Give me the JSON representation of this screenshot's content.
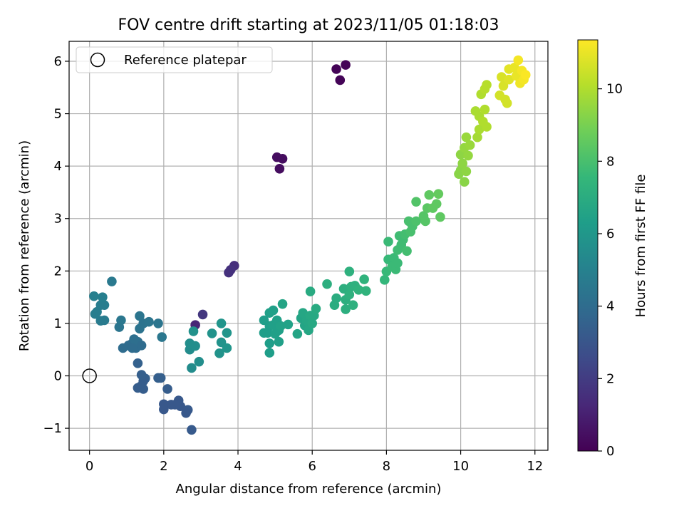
{
  "chart_data": {
    "type": "scatter",
    "title": "FOV centre drift starting at 2023/11/05 01:18:03",
    "xlabel": "Angular distance from reference (arcmin)",
    "ylabel": "Rotation from reference (arcmin)",
    "xlim": [
      -0.55,
      12.35
    ],
    "ylim": [
      -1.42,
      6.38
    ],
    "xticks": [
      0,
      2,
      4,
      6,
      8,
      10,
      12
    ],
    "yticks": [
      -1,
      0,
      1,
      2,
      3,
      4,
      5,
      6
    ],
    "xtick_labels": [
      "0",
      "2",
      "4",
      "6",
      "8",
      "10",
      "12"
    ],
    "ytick_labels": [
      "−1",
      "0",
      "1",
      "2",
      "3",
      "4",
      "5",
      "6"
    ],
    "grid": true,
    "legend": {
      "position": "top-left",
      "entries": [
        {
          "label": "Reference platepar",
          "marker": "open-circle"
        }
      ]
    },
    "reference_point": {
      "x": 0,
      "y": 0
    },
    "colorbar": {
      "label": "Hours from first FF file",
      "colormap": "viridis",
      "range": [
        0,
        11.35
      ],
      "ticks": [
        0,
        2,
        4,
        6,
        8,
        10
      ],
      "tick_labels": [
        "0",
        "2",
        "4",
        "6",
        "8",
        "10"
      ]
    },
    "viridis_stops": [
      "#440154",
      "#482878",
      "#3e4a89",
      "#31688e",
      "#26828e",
      "#1f9e89",
      "#35b779",
      "#6ece58",
      "#b5de2b",
      "#fde725"
    ],
    "points": [
      {
        "x": 6.65,
        "y": 5.85,
        "h": 0.1
      },
      {
        "x": 6.9,
        "y": 5.93,
        "h": 0.1
      },
      {
        "x": 6.75,
        "y": 5.64,
        "h": 0.1
      },
      {
        "x": 5.05,
        "y": 4.17,
        "h": 0.4
      },
      {
        "x": 5.2,
        "y": 4.14,
        "h": 0.4
      },
      {
        "x": 5.12,
        "y": 3.95,
        "h": 0.4
      },
      {
        "x": 3.9,
        "y": 2.1,
        "h": 1.5
      },
      {
        "x": 3.8,
        "y": 2.02,
        "h": 1.6
      },
      {
        "x": 3.75,
        "y": 1.97,
        "h": 1.6
      },
      {
        "x": 3.05,
        "y": 1.17,
        "h": 1.8
      },
      {
        "x": 2.85,
        "y": 0.97,
        "h": 1.2
      },
      {
        "x": 2.75,
        "y": -1.03,
        "h": 3.2
      },
      {
        "x": 2.65,
        "y": -0.65,
        "h": 3.2
      },
      {
        "x": 2.6,
        "y": -0.71,
        "h": 3.1
      },
      {
        "x": 2.45,
        "y": -0.58,
        "h": 3.1
      },
      {
        "x": 2.4,
        "y": -0.47,
        "h": 3.1
      },
      {
        "x": 2.3,
        "y": -0.55,
        "h": 3.1
      },
      {
        "x": 2.2,
        "y": -0.55,
        "h": 3.1
      },
      {
        "x": 2.1,
        "y": -0.25,
        "h": 3.3
      },
      {
        "x": 2.0,
        "y": -0.54,
        "h": 3.1
      },
      {
        "x": 2.0,
        "y": -0.64,
        "h": 3.1
      },
      {
        "x": 1.85,
        "y": -0.04,
        "h": 3.4
      },
      {
        "x": 1.92,
        "y": -0.04,
        "h": 3.4
      },
      {
        "x": 1.5,
        "y": -0.05,
        "h": 3.4
      },
      {
        "x": 1.45,
        "y": -0.1,
        "h": 3.3
      },
      {
        "x": 1.4,
        "y": 0.02,
        "h": 3.4
      },
      {
        "x": 1.38,
        "y": -0.2,
        "h": 3.3
      },
      {
        "x": 1.45,
        "y": -0.25,
        "h": 3.3
      },
      {
        "x": 1.3,
        "y": -0.23,
        "h": 3.3
      },
      {
        "x": 1.3,
        "y": 0.24,
        "h": 3.5
      },
      {
        "x": 0.9,
        "y": 0.53,
        "h": 4.0
      },
      {
        "x": 1.05,
        "y": 0.58,
        "h": 4.0
      },
      {
        "x": 1.15,
        "y": 0.62,
        "h": 4.0
      },
      {
        "x": 1.2,
        "y": 0.7,
        "h": 4.1
      },
      {
        "x": 1.25,
        "y": 0.53,
        "h": 4.0
      },
      {
        "x": 1.3,
        "y": 0.65,
        "h": 4.1
      },
      {
        "x": 1.4,
        "y": 0.58,
        "h": 4.0
      },
      {
        "x": 1.15,
        "y": 0.53,
        "h": 4.0
      },
      {
        "x": 1.35,
        "y": 0.9,
        "h": 4.3
      },
      {
        "x": 1.35,
        "y": 1.14,
        "h": 4.4
      },
      {
        "x": 1.45,
        "y": 1.0,
        "h": 4.3
      },
      {
        "x": 1.6,
        "y": 1.03,
        "h": 4.4
      },
      {
        "x": 1.85,
        "y": 1.0,
        "h": 4.4
      },
      {
        "x": 1.95,
        "y": 0.74,
        "h": 4.5
      },
      {
        "x": 0.8,
        "y": 0.93,
        "h": 4.4
      },
      {
        "x": 0.85,
        "y": 1.06,
        "h": 4.5
      },
      {
        "x": 0.6,
        "y": 1.8,
        "h": 4.6
      },
      {
        "x": 0.3,
        "y": 1.05,
        "h": 4.7
      },
      {
        "x": 0.4,
        "y": 1.06,
        "h": 4.7
      },
      {
        "x": 0.2,
        "y": 1.22,
        "h": 4.8
      },
      {
        "x": 0.15,
        "y": 1.18,
        "h": 4.8
      },
      {
        "x": 0.3,
        "y": 1.35,
        "h": 4.8
      },
      {
        "x": 0.4,
        "y": 1.35,
        "h": 4.8
      },
      {
        "x": 0.12,
        "y": 1.52,
        "h": 4.9
      },
      {
        "x": 0.35,
        "y": 1.5,
        "h": 4.9
      },
      {
        "x": 2.7,
        "y": 0.5,
        "h": 5.5
      },
      {
        "x": 2.75,
        "y": 0.15,
        "h": 5.5
      },
      {
        "x": 2.85,
        "y": 0.57,
        "h": 5.6
      },
      {
        "x": 2.7,
        "y": 0.62,
        "h": 5.6
      },
      {
        "x": 2.8,
        "y": 0.85,
        "h": 5.7
      },
      {
        "x": 2.95,
        "y": 0.27,
        "h": 5.6
      },
      {
        "x": 3.3,
        "y": 0.81,
        "h": 5.8
      },
      {
        "x": 3.5,
        "y": 0.43,
        "h": 5.8
      },
      {
        "x": 3.55,
        "y": 0.64,
        "h": 5.8
      },
      {
        "x": 3.55,
        "y": 1.0,
        "h": 5.9
      },
      {
        "x": 3.7,
        "y": 0.82,
        "h": 5.9
      },
      {
        "x": 3.7,
        "y": 0.53,
        "h": 5.9
      },
      {
        "x": 4.7,
        "y": 1.06,
        "h": 6.3
      },
      {
        "x": 4.8,
        "y": 0.82,
        "h": 6.3
      },
      {
        "x": 4.7,
        "y": 0.82,
        "h": 6.3
      },
      {
        "x": 4.85,
        "y": 0.95,
        "h": 6.3
      },
      {
        "x": 4.85,
        "y": 0.62,
        "h": 6.3
      },
      {
        "x": 4.85,
        "y": 0.44,
        "h": 6.3
      },
      {
        "x": 4.85,
        "y": 1.2,
        "h": 6.4
      },
      {
        "x": 4.95,
        "y": 1.25,
        "h": 6.4
      },
      {
        "x": 4.95,
        "y": 0.97,
        "h": 6.4
      },
      {
        "x": 5.0,
        "y": 0.8,
        "h": 6.4
      },
      {
        "x": 5.05,
        "y": 1.06,
        "h": 6.4
      },
      {
        "x": 5.1,
        "y": 0.87,
        "h": 6.4
      },
      {
        "x": 5.1,
        "y": 0.65,
        "h": 6.4
      },
      {
        "x": 5.15,
        "y": 0.95,
        "h": 6.5
      },
      {
        "x": 5.2,
        "y": 1.37,
        "h": 6.6
      },
      {
        "x": 5.35,
        "y": 0.98,
        "h": 6.5
      },
      {
        "x": 5.6,
        "y": 0.8,
        "h": 6.6
      },
      {
        "x": 5.7,
        "y": 1.1,
        "h": 6.6
      },
      {
        "x": 5.75,
        "y": 1.2,
        "h": 6.7
      },
      {
        "x": 5.8,
        "y": 0.96,
        "h": 6.6
      },
      {
        "x": 5.85,
        "y": 1.05,
        "h": 6.7
      },
      {
        "x": 5.9,
        "y": 0.87,
        "h": 6.7
      },
      {
        "x": 5.95,
        "y": 1.15,
        "h": 6.8
      },
      {
        "x": 6.0,
        "y": 1.0,
        "h": 6.8
      },
      {
        "x": 6.05,
        "y": 1.15,
        "h": 6.8
      },
      {
        "x": 6.1,
        "y": 1.28,
        "h": 6.9
      },
      {
        "x": 5.95,
        "y": 1.61,
        "h": 6.9
      },
      {
        "x": 6.4,
        "y": 1.75,
        "h": 7.1
      },
      {
        "x": 6.6,
        "y": 1.35,
        "h": 7.0
      },
      {
        "x": 6.65,
        "y": 1.48,
        "h": 7.0
      },
      {
        "x": 6.85,
        "y": 1.66,
        "h": 7.1
      },
      {
        "x": 6.9,
        "y": 1.27,
        "h": 7.1
      },
      {
        "x": 6.9,
        "y": 1.45,
        "h": 7.1
      },
      {
        "x": 7.0,
        "y": 1.55,
        "h": 7.2
      },
      {
        "x": 7.0,
        "y": 1.99,
        "h": 7.2
      },
      {
        "x": 7.05,
        "y": 1.7,
        "h": 7.2
      },
      {
        "x": 7.1,
        "y": 1.35,
        "h": 7.2
      },
      {
        "x": 7.15,
        "y": 1.72,
        "h": 7.2
      },
      {
        "x": 7.25,
        "y": 1.64,
        "h": 7.3
      },
      {
        "x": 7.4,
        "y": 1.84,
        "h": 7.3
      },
      {
        "x": 7.45,
        "y": 1.62,
        "h": 7.3
      },
      {
        "x": 7.95,
        "y": 1.83,
        "h": 7.5
      },
      {
        "x": 8.0,
        "y": 1.99,
        "h": 7.6
      },
      {
        "x": 8.05,
        "y": 2.22,
        "h": 7.6
      },
      {
        "x": 8.05,
        "y": 2.56,
        "h": 7.7
      },
      {
        "x": 8.15,
        "y": 2.08,
        "h": 7.7
      },
      {
        "x": 8.2,
        "y": 2.25,
        "h": 7.7
      },
      {
        "x": 8.25,
        "y": 2.03,
        "h": 7.7
      },
      {
        "x": 8.3,
        "y": 2.15,
        "h": 7.7
      },
      {
        "x": 8.3,
        "y": 2.4,
        "h": 7.8
      },
      {
        "x": 8.35,
        "y": 2.67,
        "h": 7.8
      },
      {
        "x": 8.4,
        "y": 2.5,
        "h": 7.8
      },
      {
        "x": 8.45,
        "y": 2.6,
        "h": 7.8
      },
      {
        "x": 8.5,
        "y": 2.7,
        "h": 7.9
      },
      {
        "x": 8.55,
        "y": 2.38,
        "h": 7.9
      },
      {
        "x": 8.6,
        "y": 2.95,
        "h": 8.0
      },
      {
        "x": 8.65,
        "y": 2.75,
        "h": 8.0
      },
      {
        "x": 8.7,
        "y": 2.85,
        "h": 8.0
      },
      {
        "x": 8.8,
        "y": 2.95,
        "h": 8.1
      },
      {
        "x": 8.8,
        "y": 3.32,
        "h": 8.2
      },
      {
        "x": 9.0,
        "y": 3.05,
        "h": 8.3
      },
      {
        "x": 9.05,
        "y": 2.95,
        "h": 8.3
      },
      {
        "x": 9.1,
        "y": 3.2,
        "h": 8.4
      },
      {
        "x": 9.15,
        "y": 3.45,
        "h": 8.5
      },
      {
        "x": 9.25,
        "y": 3.2,
        "h": 8.5
      },
      {
        "x": 9.35,
        "y": 3.28,
        "h": 8.5
      },
      {
        "x": 9.4,
        "y": 3.47,
        "h": 8.6
      },
      {
        "x": 9.45,
        "y": 3.03,
        "h": 8.5
      },
      {
        "x": 9.95,
        "y": 3.85,
        "h": 9.3
      },
      {
        "x": 10.0,
        "y": 4.22,
        "h": 9.4
      },
      {
        "x": 10.0,
        "y": 3.92,
        "h": 9.3
      },
      {
        "x": 10.05,
        "y": 4.05,
        "h": 9.4
      },
      {
        "x": 10.1,
        "y": 3.7,
        "h": 9.3
      },
      {
        "x": 10.1,
        "y": 4.35,
        "h": 9.5
      },
      {
        "x": 10.15,
        "y": 4.55,
        "h": 9.6
      },
      {
        "x": 10.15,
        "y": 3.9,
        "h": 9.4
      },
      {
        "x": 10.2,
        "y": 4.2,
        "h": 9.5
      },
      {
        "x": 10.25,
        "y": 4.4,
        "h": 9.6
      },
      {
        "x": 10.4,
        "y": 5.05,
        "h": 9.9
      },
      {
        "x": 10.45,
        "y": 4.55,
        "h": 9.8
      },
      {
        "x": 10.5,
        "y": 4.7,
        "h": 9.9
      },
      {
        "x": 10.5,
        "y": 4.95,
        "h": 9.9
      },
      {
        "x": 10.55,
        "y": 5.37,
        "h": 10.0
      },
      {
        "x": 10.6,
        "y": 4.85,
        "h": 10.0
      },
      {
        "x": 10.65,
        "y": 5.08,
        "h": 10.0
      },
      {
        "x": 10.65,
        "y": 5.47,
        "h": 10.1
      },
      {
        "x": 10.7,
        "y": 4.75,
        "h": 10.0
      },
      {
        "x": 10.7,
        "y": 5.55,
        "h": 10.1
      },
      {
        "x": 11.05,
        "y": 5.35,
        "h": 10.6
      },
      {
        "x": 11.1,
        "y": 5.7,
        "h": 10.7
      },
      {
        "x": 11.15,
        "y": 5.53,
        "h": 10.7
      },
      {
        "x": 11.2,
        "y": 5.27,
        "h": 10.6
      },
      {
        "x": 11.25,
        "y": 5.2,
        "h": 10.6
      },
      {
        "x": 11.3,
        "y": 5.65,
        "h": 10.8
      },
      {
        "x": 11.3,
        "y": 5.85,
        "h": 10.9
      },
      {
        "x": 11.45,
        "y": 5.88,
        "h": 11.0
      },
      {
        "x": 11.5,
        "y": 5.72,
        "h": 11.0
      },
      {
        "x": 11.55,
        "y": 6.02,
        "h": 11.2
      },
      {
        "x": 11.6,
        "y": 5.58,
        "h": 11.1
      },
      {
        "x": 11.65,
        "y": 5.82,
        "h": 11.2
      },
      {
        "x": 11.7,
        "y": 5.65,
        "h": 11.2
      },
      {
        "x": 11.75,
        "y": 5.74,
        "h": 11.3
      }
    ]
  }
}
